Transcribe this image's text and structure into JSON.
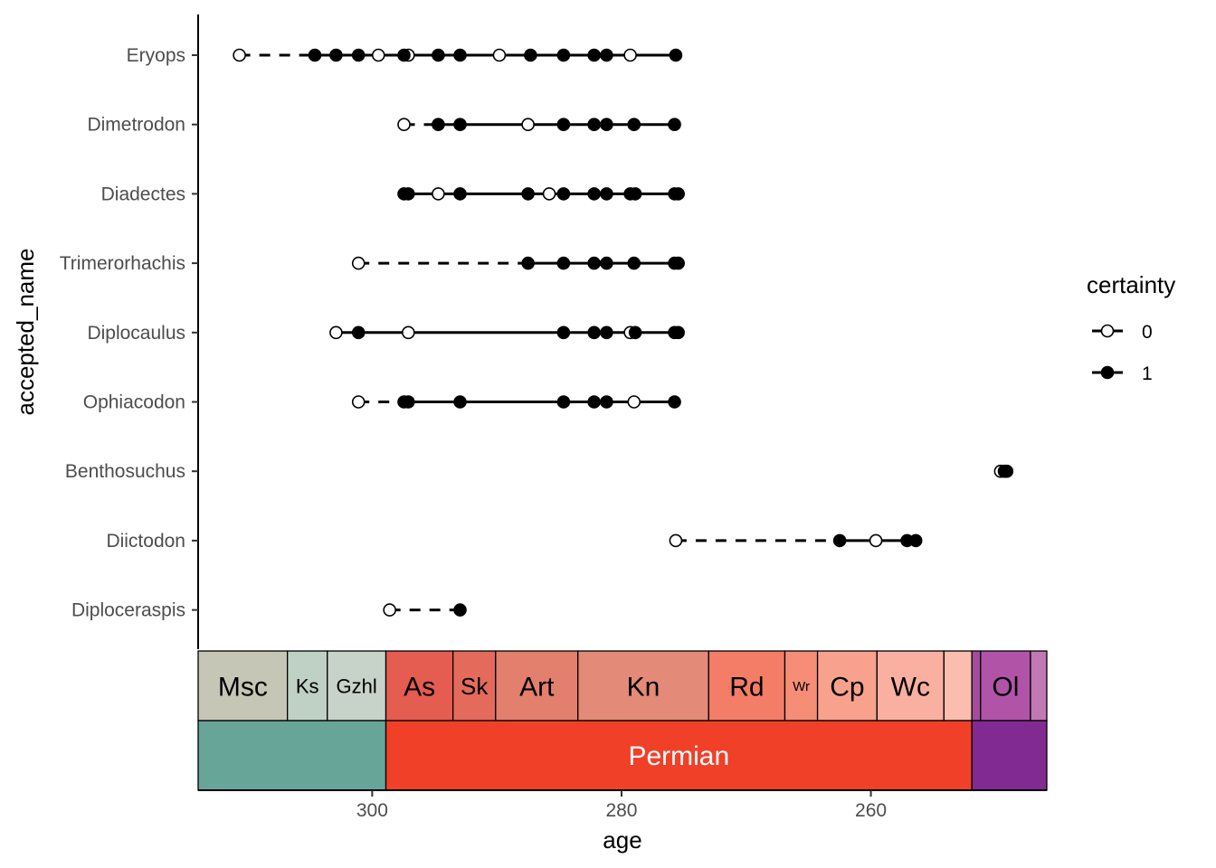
{
  "chart_data": {
    "type": "scatter",
    "xlabel": "age",
    "ylabel": "accepted_name",
    "x_reversed": true,
    "xlim": [
      313.96,
      245.89
    ],
    "x_ticks": [
      300,
      280,
      260
    ],
    "species": [
      {
        "name": "Eryops",
        "points": [
          {
            "age": 310.65,
            "c": 0
          },
          {
            "age": 304.6,
            "c": 1
          },
          {
            "age": 302.9,
            "c": 1
          },
          {
            "age": 301.1,
            "c": 1
          },
          {
            "age": 299.5,
            "c": 0
          },
          {
            "age": 297.45,
            "c": 1
          },
          {
            "age": 297.1,
            "c": 0
          },
          {
            "age": 294.7,
            "c": 1
          },
          {
            "age": 292.95,
            "c": 1
          },
          {
            "age": 289.8,
            "c": 0
          },
          {
            "age": 287.3,
            "c": 1
          },
          {
            "age": 284.65,
            "c": 1
          },
          {
            "age": 282.2,
            "c": 1
          },
          {
            "age": 281.2,
            "c": 1
          },
          {
            "age": 279.3,
            "c": 0
          },
          {
            "age": 275.65,
            "c": 1
          }
        ],
        "segments": [
          {
            "from": 310.65,
            "to": 304.6,
            "style": "dashed"
          },
          {
            "from": 304.6,
            "to": 275.65,
            "style": "solid"
          }
        ]
      },
      {
        "name": "Dimetrodon",
        "points": [
          {
            "age": 297.45,
            "c": 0
          },
          {
            "age": 294.7,
            "c": 1
          },
          {
            "age": 292.95,
            "c": 1
          },
          {
            "age": 287.5,
            "c": 0
          },
          {
            "age": 284.65,
            "c": 1
          },
          {
            "age": 282.2,
            "c": 1
          },
          {
            "age": 281.2,
            "c": 1
          },
          {
            "age": 279.0,
            "c": 1
          },
          {
            "age": 275.75,
            "c": 1
          }
        ],
        "segments": [
          {
            "from": 297.45,
            "to": 294.7,
            "style": "dashed"
          },
          {
            "from": 294.7,
            "to": 275.75,
            "style": "solid"
          }
        ]
      },
      {
        "name": "Diadectes",
        "points": [
          {
            "age": 297.45,
            "c": 1
          },
          {
            "age": 297.1,
            "c": 1
          },
          {
            "age": 294.7,
            "c": 0
          },
          {
            "age": 292.95,
            "c": 1
          },
          {
            "age": 287.5,
            "c": 1
          },
          {
            "age": 285.8,
            "c": 0
          },
          {
            "age": 284.65,
            "c": 1
          },
          {
            "age": 282.2,
            "c": 1
          },
          {
            "age": 281.2,
            "c": 1
          },
          {
            "age": 279.3,
            "c": 1
          },
          {
            "age": 278.9,
            "c": 1
          },
          {
            "age": 275.75,
            "c": 1
          },
          {
            "age": 275.45,
            "c": 1
          }
        ],
        "segments": [
          {
            "from": 297.45,
            "to": 275.45,
            "style": "solid"
          }
        ]
      },
      {
        "name": "Trimerorhachis",
        "points": [
          {
            "age": 301.1,
            "c": 0
          },
          {
            "age": 287.5,
            "c": 1
          },
          {
            "age": 284.65,
            "c": 1
          },
          {
            "age": 282.2,
            "c": 1
          },
          {
            "age": 281.2,
            "c": 1
          },
          {
            "age": 279.0,
            "c": 1
          },
          {
            "age": 275.75,
            "c": 1
          },
          {
            "age": 275.45,
            "c": 1
          }
        ],
        "segments": [
          {
            "from": 301.1,
            "to": 287.5,
            "style": "dashed"
          },
          {
            "from": 287.5,
            "to": 275.45,
            "style": "solid"
          }
        ]
      },
      {
        "name": "Diplocaulus",
        "points": [
          {
            "age": 302.9,
            "c": 0
          },
          {
            "age": 301.1,
            "c": 1
          },
          {
            "age": 297.1,
            "c": 0
          },
          {
            "age": 284.65,
            "c": 1
          },
          {
            "age": 282.2,
            "c": 1
          },
          {
            "age": 281.2,
            "c": 1
          },
          {
            "age": 279.3,
            "c": 0
          },
          {
            "age": 278.9,
            "c": 1
          },
          {
            "age": 275.75,
            "c": 1
          },
          {
            "age": 275.45,
            "c": 1
          }
        ],
        "segments": [
          {
            "from": 302.9,
            "to": 301.1,
            "style": "solid"
          },
          {
            "from": 301.1,
            "to": 275.45,
            "style": "solid"
          }
        ]
      },
      {
        "name": "Ophiacodon",
        "points": [
          {
            "age": 301.1,
            "c": 0
          },
          {
            "age": 297.45,
            "c": 1
          },
          {
            "age": 297.1,
            "c": 1
          },
          {
            "age": 292.95,
            "c": 1
          },
          {
            "age": 284.65,
            "c": 1
          },
          {
            "age": 282.2,
            "c": 1
          },
          {
            "age": 281.2,
            "c": 1
          },
          {
            "age": 279.0,
            "c": 0
          },
          {
            "age": 275.75,
            "c": 1
          }
        ],
        "segments": [
          {
            "from": 301.1,
            "to": 297.45,
            "style": "dashed"
          },
          {
            "from": 297.45,
            "to": 275.75,
            "style": "solid"
          }
        ]
      },
      {
        "name": "Benthosuchus",
        "points": [
          {
            "age": 249.6,
            "c": 0
          },
          {
            "age": 249.3,
            "c": 1
          },
          {
            "age": 249.1,
            "c": 1
          }
        ],
        "segments": [
          {
            "from": 249.6,
            "to": 249.1,
            "style": "solid"
          }
        ]
      },
      {
        "name": "Diictodon",
        "points": [
          {
            "age": 275.65,
            "c": 0
          },
          {
            "age": 262.5,
            "c": 1
          },
          {
            "age": 259.6,
            "c": 0
          },
          {
            "age": 257.1,
            "c": 1
          },
          {
            "age": 256.4,
            "c": 1
          }
        ],
        "segments": [
          {
            "from": 275.65,
            "to": 262.5,
            "style": "dashed"
          },
          {
            "from": 262.5,
            "to": 256.4,
            "style": "solid"
          }
        ]
      },
      {
        "name": "Diploceraspis",
        "points": [
          {
            "age": 298.6,
            "c": 0
          },
          {
            "age": 292.95,
            "c": 1
          }
        ],
        "segments": [
          {
            "from": 298.6,
            "to": 292.95,
            "style": "dashed"
          }
        ]
      }
    ],
    "legend": {
      "title": "certainty",
      "position": "right",
      "entries": [
        {
          "label": "0",
          "filled": false
        },
        {
          "label": "1",
          "filled": true
        }
      ]
    },
    "stages": [
      {
        "label": "Msc",
        "start": 313.96,
        "end": 306.8,
        "color": "#C6C6B6",
        "size": 30
      },
      {
        "label": "Ks",
        "start": 306.8,
        "end": 303.6,
        "color": "#BFD0C5",
        "size": 22
      },
      {
        "label": "Gzhl",
        "start": 303.6,
        "end": 298.9,
        "color": "#C7D2C8",
        "size": 22
      },
      {
        "label": "As",
        "start": 298.9,
        "end": 293.52,
        "color": "#E55C50",
        "size": 30
      },
      {
        "label": "Sk",
        "start": 293.52,
        "end": 290.1,
        "color": "#E46B5C",
        "size": 26
      },
      {
        "label": "Art",
        "start": 290.1,
        "end": 283.5,
        "color": "#E37F6D",
        "size": 30
      },
      {
        "label": "Kn",
        "start": 283.5,
        "end": 273.01,
        "color": "#E38A78",
        "size": 30
      },
      {
        "label": "Rd",
        "start": 273.01,
        "end": 266.9,
        "color": "#F37D67",
        "size": 30
      },
      {
        "label": "Wr",
        "start": 266.9,
        "end": 264.28,
        "color": "#F58D77",
        "size": 15
      },
      {
        "label": "Cp",
        "start": 264.28,
        "end": 259.51,
        "color": "#F8A28D",
        "size": 30
      },
      {
        "label": "Wc",
        "start": 259.51,
        "end": 254.14,
        "color": "#FAB0A0",
        "size": 30
      },
      {
        "label": "",
        "start": 254.14,
        "end": 251.902,
        "color": "#FBBDAF",
        "size": 20
      },
      {
        "label": "",
        "start": 251.902,
        "end": 251.2,
        "color": "#A44BA0",
        "size": 20
      },
      {
        "label": "Ol",
        "start": 251.2,
        "end": 247.2,
        "color": "#B154A8",
        "size": 30
      },
      {
        "label": "",
        "start": 247.2,
        "end": 245.89,
        "color": "#C378B6",
        "size": 20
      }
    ],
    "periods": [
      {
        "label": "",
        "start": 313.96,
        "end": 298.9,
        "color": "#67A599"
      },
      {
        "label": "Permian",
        "start": 298.9,
        "end": 251.902,
        "color": "#F04028"
      },
      {
        "label": "",
        "start": 251.902,
        "end": 245.89,
        "color": "#812B92"
      }
    ]
  }
}
